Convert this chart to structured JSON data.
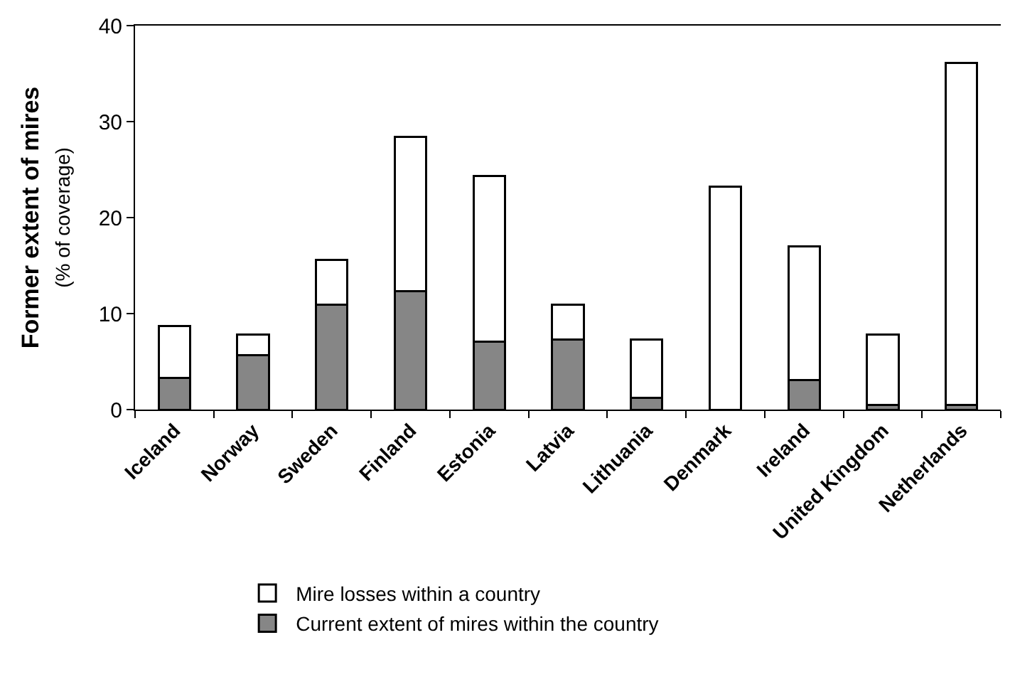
{
  "chart_data": {
    "type": "bar",
    "stacked": true,
    "ylabel": "Former extent of mires\n(% of coverage)",
    "categories": [
      "Iceland",
      "Norway",
      "Sweden",
      "Finland",
      "Estonia",
      "Latvia",
      "Lithuania",
      "Denmark",
      "Ireland",
      "United Kingdom",
      "Netherlands"
    ],
    "series": [
      {
        "name": "Current extent of mires within the country",
        "color": "#868686",
        "values": [
          3.3,
          5.7,
          10.9,
          12.3,
          7.1,
          7.3,
          1.2,
          0,
          3.1,
          0.5,
          0.5
        ]
      },
      {
        "name": "Mire losses within a country",
        "color": "#ffffff",
        "values": [
          5.4,
          2.1,
          4.7,
          16.1,
          17.2,
          3.6,
          6.1,
          23.2,
          13.9,
          7.3,
          35.6
        ]
      }
    ],
    "ylim": [
      0,
      40
    ],
    "yticks": [
      0,
      10,
      20,
      30,
      40
    ],
    "legend": "bottom"
  }
}
